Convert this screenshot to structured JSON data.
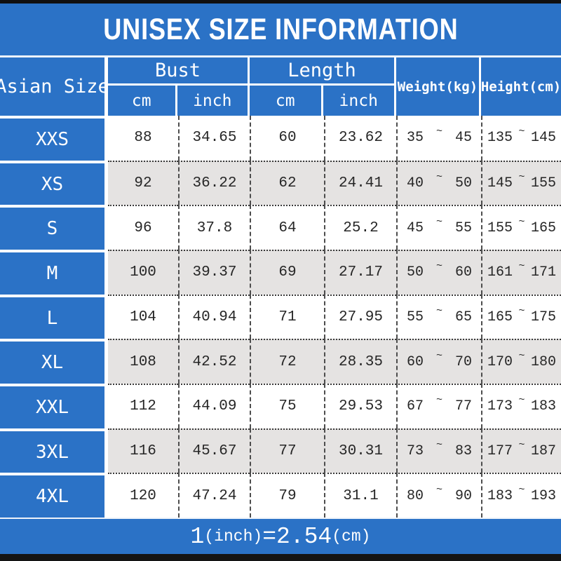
{
  "title": "UNISEX SIZE INFORMATION",
  "header": {
    "asian_size": "Asian Size",
    "bust": "Bust",
    "length": "Length",
    "weight": "Weight(kg)",
    "height": "Height(cm)",
    "unit_cm": "cm",
    "unit_inch": "inch",
    "tilde": "~"
  },
  "rows": [
    {
      "size": "XXS",
      "bust_cm": "88",
      "bust_inch": "34.65",
      "length_cm": "60",
      "length_inch": "23.62",
      "weight_min": "35",
      "weight_max": "45",
      "height_min": "135",
      "height_max": "145"
    },
    {
      "size": "XS",
      "bust_cm": "92",
      "bust_inch": "36.22",
      "length_cm": "62",
      "length_inch": "24.41",
      "weight_min": "40",
      "weight_max": "50",
      "height_min": "145",
      "height_max": "155"
    },
    {
      "size": "S",
      "bust_cm": "96",
      "bust_inch": "37.8",
      "length_cm": "64",
      "length_inch": "25.2",
      "weight_min": "45",
      "weight_max": "55",
      "height_min": "155",
      "height_max": "165"
    },
    {
      "size": "M",
      "bust_cm": "100",
      "bust_inch": "39.37",
      "length_cm": "69",
      "length_inch": "27.17",
      "weight_min": "50",
      "weight_max": "60",
      "height_min": "161",
      "height_max": "171"
    },
    {
      "size": "L",
      "bust_cm": "104",
      "bust_inch": "40.94",
      "length_cm": "71",
      "length_inch": "27.95",
      "weight_min": "55",
      "weight_max": "65",
      "height_min": "165",
      "height_max": "175"
    },
    {
      "size": "XL",
      "bust_cm": "108",
      "bust_inch": "42.52",
      "length_cm": "72",
      "length_inch": "28.35",
      "weight_min": "60",
      "weight_max": "70",
      "height_min": "170",
      "height_max": "180"
    },
    {
      "size": "XXL",
      "bust_cm": "112",
      "bust_inch": "44.09",
      "length_cm": "75",
      "length_inch": "29.53",
      "weight_min": "67",
      "weight_max": "77",
      "height_min": "173",
      "height_max": "183"
    },
    {
      "size": "3XL",
      "bust_cm": "116",
      "bust_inch": "45.67",
      "length_cm": "77",
      "length_inch": "30.31",
      "weight_min": "73",
      "weight_max": "83",
      "height_min": "177",
      "height_max": "187"
    },
    {
      "size": "4XL",
      "bust_cm": "120",
      "bust_inch": "47.24",
      "length_cm": "79",
      "length_inch": "31.1",
      "weight_min": "80",
      "weight_max": "90",
      "height_min": "183",
      "height_max": "193"
    }
  ],
  "footer": {
    "num1": "1",
    "unit1": "(inch)",
    "equals": "=",
    "num2": "2.54",
    "unit2": "(cm)"
  },
  "colors": {
    "accent_blue": "#2B72C6",
    "alt_row_gray": "#E5E3E2",
    "bar_black": "#101010"
  },
  "chart_data": {
    "type": "table",
    "title": "UNISEX SIZE INFORMATION",
    "columns": [
      "Asian Size",
      "Bust cm",
      "Bust inch",
      "Length cm",
      "Length inch",
      "Weight(kg)",
      "Height(cm)"
    ],
    "rows": [
      [
        "XXS",
        88,
        34.65,
        60,
        23.62,
        "35~45",
        "135~145"
      ],
      [
        "XS",
        92,
        36.22,
        62,
        24.41,
        "40~50",
        "145~155"
      ],
      [
        "S",
        96,
        37.8,
        64,
        25.2,
        "45~55",
        "155~165"
      ],
      [
        "M",
        100,
        39.37,
        69,
        27.17,
        "50~60",
        "161~171"
      ],
      [
        "L",
        104,
        40.94,
        71,
        27.95,
        "55~65",
        "165~175"
      ],
      [
        "XL",
        108,
        42.52,
        72,
        28.35,
        "60~70",
        "170~180"
      ],
      [
        "XXL",
        112,
        44.09,
        75,
        29.53,
        "67~77",
        "173~183"
      ],
      [
        "3XL",
        116,
        45.67,
        77,
        30.31,
        "73~83",
        "177~187"
      ],
      [
        "4XL",
        120,
        47.24,
        79,
        31.1,
        "80~90",
        "183~193"
      ]
    ],
    "note": "1(inch)=2.54(cm)"
  }
}
